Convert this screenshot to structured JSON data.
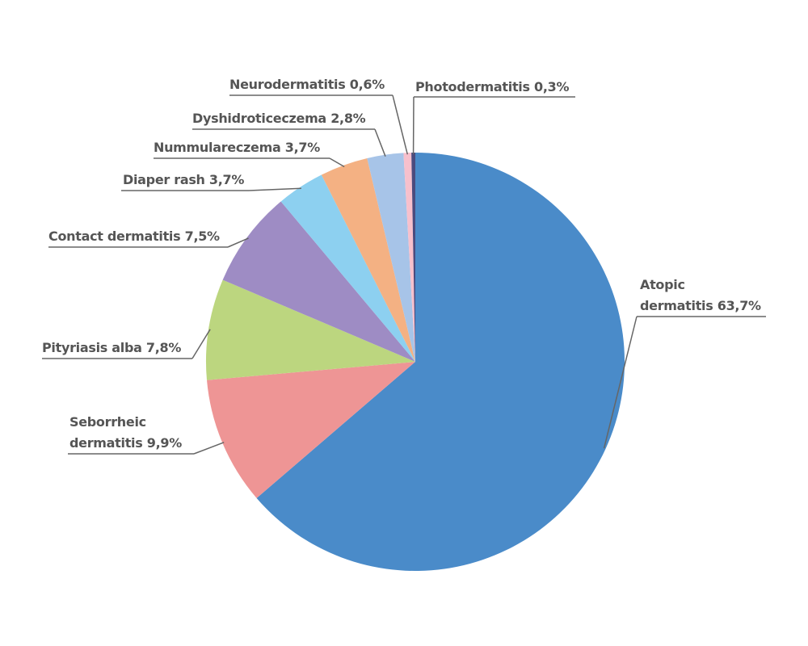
{
  "chart_data": {
    "type": "pie",
    "categories": [
      "Atopic dermatitis",
      "Seborrheic dermatitis",
      "Pityriasis alba",
      "Contact dermatitis",
      "Diaper rash",
      "Nummulareczema",
      "Dyshidroticeczema",
      "Neurodermatitis",
      "Photodermatitis"
    ],
    "values": [
      63.7,
      9.9,
      7.8,
      7.5,
      3.7,
      3.7,
      2.8,
      0.6,
      0.3
    ],
    "value_labels": [
      "63,7%",
      "9,9%",
      "7,8%",
      "7,5%",
      "3,7%",
      "3,7%",
      "2,8%",
      "0,6%",
      "0,3%"
    ],
    "colors": [
      "#4a8bc9",
      "#ee9595",
      "#bcd67f",
      "#9e8cc4",
      "#8dd0f0",
      "#f4b183",
      "#a7c4e8",
      "#f7c0cc",
      "#4b4b7e"
    ]
  }
}
